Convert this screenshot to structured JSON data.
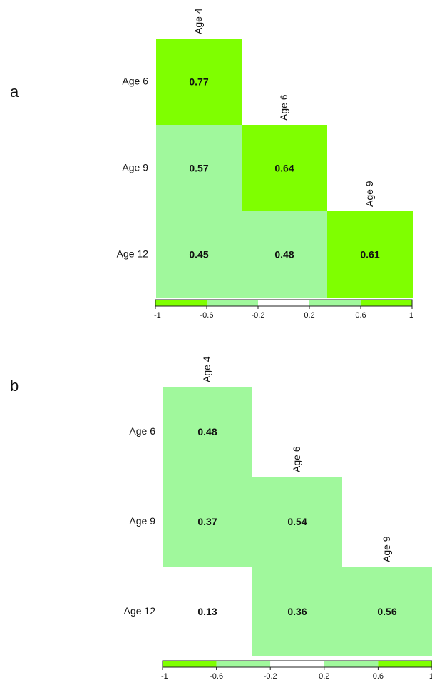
{
  "chart_data": [
    {
      "type": "heatmap",
      "panel_label": "a",
      "row_labels": [
        "Age 6",
        "Age 9",
        "Age 12"
      ],
      "col_labels": [
        "Age 4",
        "Age 6",
        "Age 9"
      ],
      "cells": [
        [
          0.77,
          null,
          null
        ],
        [
          0.57,
          0.64,
          null
        ],
        [
          0.45,
          0.48,
          0.61
        ]
      ],
      "colorbar": {
        "ticks": [
          "-1",
          "-0.6",
          "-0.2",
          "0.2",
          "0.6",
          "1"
        ],
        "colors": [
          "#7fff00",
          "#a0f89c",
          "#ffffff",
          "#a0f89c",
          "#7fff00"
        ]
      }
    },
    {
      "type": "heatmap",
      "panel_label": "b",
      "row_labels": [
        "Age 6",
        "Age 9",
        "Age 12"
      ],
      "col_labels": [
        "Age 4",
        "Age 6",
        "Age 9"
      ],
      "cells": [
        [
          0.48,
          null,
          null
        ],
        [
          0.37,
          0.54,
          null
        ],
        [
          0.13,
          0.36,
          0.56
        ]
      ],
      "colorbar": {
        "ticks": [
          "-1",
          "-0.6",
          "-0.2",
          "0.2",
          "0.6",
          "1"
        ],
        "colors": [
          "#7fff00",
          "#a0f89c",
          "#ffffff",
          "#a0f89c",
          "#7fff00"
        ]
      }
    }
  ]
}
